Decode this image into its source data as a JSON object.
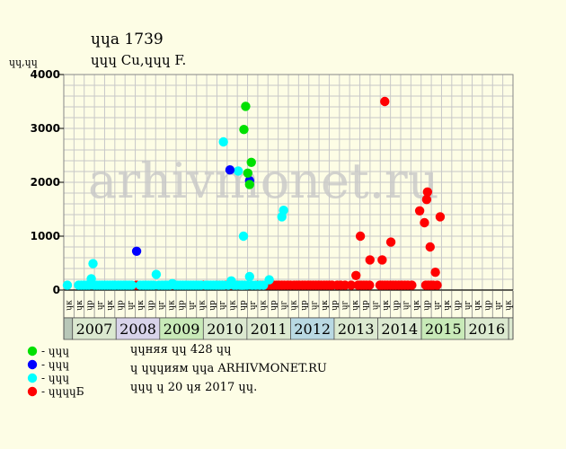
{
  "chart_data": {
    "type": "scatter",
    "title": "ɥɥа 1739",
    "subtitle": "ɥɥɥ Cu,ɥɥɥ F.",
    "ylabel": "ɥɥ,ɥɥ",
    "ylim": [
      0,
      4000
    ],
    "yticks": [
      0,
      1000,
      2000,
      3000,
      4000
    ],
    "grid": true,
    "watermark": "arhivmonet.ru",
    "x_range": [
      2006.8,
      2017.1
    ],
    "quarter_labels": [
      "ɥк",
      "ɥк",
      "ɥр",
      "ɥг",
      "ɥк",
      "ɥр",
      "ɥг",
      "ɥк",
      "ɥр",
      "ɥг",
      "ɥк",
      "ɥр",
      "ɥг",
      "ɥк",
      "ɥр",
      "ɥг",
      "ɥк",
      "ɥр",
      "ɥг",
      "ɥк",
      "ɥр",
      "ɥг",
      "ɥк",
      "ɥр",
      "ɥг",
      "ɥк",
      "ɥр",
      "ɥг",
      "ɥк",
      "ɥр",
      "ɥг",
      "ɥк",
      "ɥр",
      "ɥг",
      "ɥк",
      "ɥр",
      "ɥг",
      "ɥк",
      "ɥр",
      "ɥг",
      "ɥк",
      "ɥр",
      "ɥг",
      "ɥк"
    ],
    "years": [
      {
        "label": "2007",
        "start": 2007,
        "end": 2008,
        "color": "#dbe9d0"
      },
      {
        "label": "2008",
        "start": 2008,
        "end": 2009,
        "color": "#d8d3ea"
      },
      {
        "label": "2009",
        "start": 2009,
        "end": 2010,
        "color": "#c8eab8"
      },
      {
        "label": "2010",
        "start": 2010,
        "end": 2011,
        "color": "#dbe9d0"
      },
      {
        "label": "2011",
        "start": 2011,
        "end": 2012,
        "color": "#dbe9d0"
      },
      {
        "label": "2012",
        "start": 2012,
        "end": 2013,
        "color": "#b9d9e3"
      },
      {
        "label": "2013",
        "start": 2013,
        "end": 2014,
        "color": "#dbe9d0"
      },
      {
        "label": "2014",
        "start": 2014,
        "end": 2015,
        "color": "#dbe9d0"
      },
      {
        "label": "2015",
        "start": 2015,
        "end": 2016,
        "color": "#c8eab8"
      },
      {
        "label": "2016",
        "start": 2016,
        "end": 2017,
        "color": "#dbe9d0"
      }
    ],
    "series": [
      {
        "name": "- ɥɥɥ",
        "color": "#00e000",
        "points": [
          [
            2010.93,
            2980
          ],
          [
            2010.97,
            3410
          ],
          [
            2011.02,
            2170
          ],
          [
            2011.06,
            1960
          ],
          [
            2011.1,
            2370
          ]
        ]
      },
      {
        "name": "- ɥɥɥ",
        "color": "#0000ff",
        "points": [
          [
            2008.47,
            720
          ],
          [
            2010.61,
            2230
          ],
          [
            2011.06,
            2030
          ]
        ]
      },
      {
        "name": "- ɥɥɥ",
        "color": "#00ffff",
        "points": [
          [
            2006.85,
            90
          ],
          [
            2007.14,
            90
          ],
          [
            2007.2,
            90
          ],
          [
            2007.26,
            90
          ],
          [
            2007.32,
            90
          ],
          [
            2007.38,
            90
          ],
          [
            2007.43,
            210
          ],
          [
            2007.47,
            490
          ],
          [
            2007.5,
            90
          ],
          [
            2007.56,
            90
          ],
          [
            2007.62,
            90
          ],
          [
            2007.68,
            90
          ],
          [
            2007.74,
            90
          ],
          [
            2007.8,
            90
          ],
          [
            2007.86,
            90
          ],
          [
            2007.92,
            90
          ],
          [
            2007.98,
            90
          ],
          [
            2008.05,
            90
          ],
          [
            2008.11,
            90
          ],
          [
            2008.17,
            90
          ],
          [
            2008.24,
            90
          ],
          [
            2008.3,
            90
          ],
          [
            2008.36,
            90
          ],
          [
            2008.55,
            90
          ],
          [
            2008.62,
            90
          ],
          [
            2008.68,
            90
          ],
          [
            2008.74,
            90
          ],
          [
            2008.8,
            90
          ],
          [
            2008.86,
            90
          ],
          [
            2008.92,
            290
          ],
          [
            2008.98,
            90
          ],
          [
            2009.05,
            90
          ],
          [
            2009.11,
            90
          ],
          [
            2009.17,
            90
          ],
          [
            2009.23,
            90
          ],
          [
            2009.29,
            120
          ],
          [
            2009.35,
            90
          ],
          [
            2009.41,
            90
          ],
          [
            2009.47,
            90
          ],
          [
            2009.53,
            90
          ],
          [
            2009.59,
            90
          ],
          [
            2009.65,
            90
          ],
          [
            2009.71,
            90
          ],
          [
            2009.77,
            90
          ],
          [
            2009.83,
            90
          ],
          [
            2009.89,
            90
          ],
          [
            2009.95,
            90
          ],
          [
            2010.05,
            90
          ],
          [
            2010.11,
            90
          ],
          [
            2010.17,
            90
          ],
          [
            2010.23,
            90
          ],
          [
            2010.29,
            90
          ],
          [
            2010.35,
            90
          ],
          [
            2010.41,
            90
          ],
          [
            2010.47,
            90
          ],
          [
            2010.57,
            90
          ],
          [
            2010.64,
            170
          ],
          [
            2010.7,
            90
          ],
          [
            2010.76,
            90
          ],
          [
            2010.8,
            2210
          ],
          [
            2010.84,
            90
          ],
          [
            2010.88,
            90
          ],
          [
            2010.94,
            90
          ],
          [
            2011.0,
            90
          ],
          [
            2011.06,
            250
          ],
          [
            2011.12,
            90
          ],
          [
            2011.2,
            90
          ],
          [
            2011.29,
            90
          ],
          [
            2011.38,
            90
          ],
          [
            2011.51,
            190
          ],
          [
            2011.8,
            1360
          ],
          [
            2011.84,
            1480
          ],
          [
            2010.46,
            2750
          ],
          [
            2010.92,
            1000
          ],
          [
            2010.9,
            90
          ]
        ]
      },
      {
        "name": "- ɥɥɥɥБ",
        "color": "#ff0000",
        "points": [
          [
            2008.47,
            90
          ],
          [
            2009.27,
            90
          ],
          [
            2010.0,
            90
          ],
          [
            2010.3,
            90
          ],
          [
            2010.37,
            90
          ],
          [
            2010.44,
            90
          ],
          [
            2010.5,
            90
          ],
          [
            2010.57,
            90
          ],
          [
            2010.63,
            90
          ],
          [
            2010.7,
            90
          ],
          [
            2010.76,
            90
          ],
          [
            2010.82,
            90
          ],
          [
            2010.88,
            90
          ],
          [
            2010.95,
            90
          ],
          [
            2011.24,
            90
          ],
          [
            2011.3,
            90
          ],
          [
            2011.37,
            90
          ],
          [
            2011.43,
            90
          ],
          [
            2011.5,
            90
          ],
          [
            2011.56,
            90
          ],
          [
            2011.62,
            90
          ],
          [
            2011.68,
            90
          ],
          [
            2011.74,
            90
          ],
          [
            2011.8,
            90
          ],
          [
            2011.86,
            90
          ],
          [
            2011.93,
            90
          ],
          [
            2012.0,
            90
          ],
          [
            2012.08,
            90
          ],
          [
            2012.14,
            90
          ],
          [
            2012.2,
            90
          ],
          [
            2012.27,
            90
          ],
          [
            2012.33,
            90
          ],
          [
            2012.4,
            90
          ],
          [
            2012.46,
            90
          ],
          [
            2012.52,
            90
          ],
          [
            2012.58,
            90
          ],
          [
            2012.64,
            90
          ],
          [
            2012.7,
            90
          ],
          [
            2012.77,
            90
          ],
          [
            2012.83,
            90
          ],
          [
            2012.89,
            90
          ],
          [
            2012.95,
            90
          ],
          [
            2013.07,
            90
          ],
          [
            2013.15,
            90
          ],
          [
            2013.25,
            90
          ],
          [
            2013.39,
            90
          ],
          [
            2013.55,
            90
          ],
          [
            2013.62,
            90
          ],
          [
            2013.68,
            90
          ],
          [
            2013.74,
            90
          ],
          [
            2013.81,
            90
          ],
          [
            2013.5,
            270
          ],
          [
            2013.6,
            1000
          ],
          [
            2013.82,
            560
          ],
          [
            2014.05,
            90
          ],
          [
            2014.1,
            90
          ],
          [
            2014.16,
            90
          ],
          [
            2014.22,
            90
          ],
          [
            2014.29,
            90
          ],
          [
            2014.35,
            90
          ],
          [
            2014.41,
            90
          ],
          [
            2014.48,
            90
          ],
          [
            2014.55,
            90
          ],
          [
            2014.62,
            90
          ],
          [
            2014.69,
            90
          ],
          [
            2014.78,
            90
          ],
          [
            2014.1,
            560
          ],
          [
            2014.16,
            3500
          ],
          [
            2014.3,
            890
          ],
          [
            2014.96,
            1470
          ],
          [
            2015.07,
            1250
          ],
          [
            2015.12,
            1680
          ],
          [
            2015.14,
            1820
          ],
          [
            2015.2,
            800
          ],
          [
            2015.1,
            90
          ],
          [
            2015.16,
            90
          ],
          [
            2015.22,
            90
          ],
          [
            2015.27,
            90
          ],
          [
            2015.32,
            330
          ],
          [
            2015.43,
            1360
          ],
          [
            2015.36,
            90
          ]
        ]
      }
    ]
  },
  "legend": {
    "items": [
      {
        "label": "- ɥɥɥ",
        "color": "#00e000"
      },
      {
        "label": "- ɥɥɥ",
        "color": "#0000ff"
      },
      {
        "label": "- ɥɥɥ",
        "color": "#00ffff"
      },
      {
        "label": "- ɥɥɥɥБ",
        "color": "#ff0000"
      }
    ]
  },
  "info": {
    "line1": "ɥɥняя ɥɥ 428 ɥɥ",
    "line2": "ɥ ɥɥɥиям ɥɥа ARHIVMONET.RU",
    "line3": "ɥɥɥ ɥ 20 ɥя 2017 ɥɥ."
  }
}
